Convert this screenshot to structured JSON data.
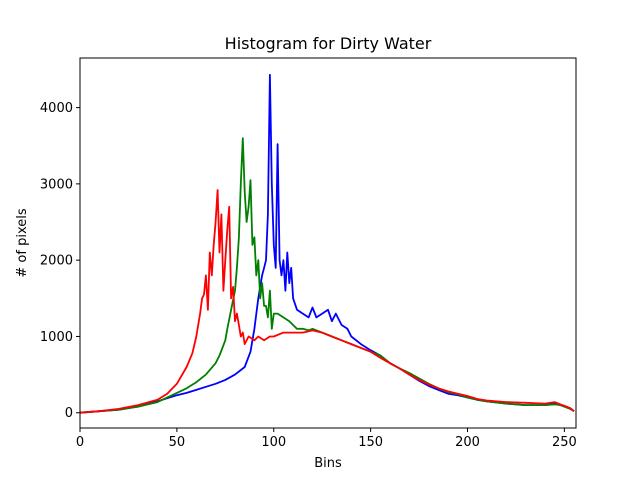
{
  "chart_data": {
    "type": "line",
    "title": "Histogram for Dirty Water",
    "xlabel": "Bins",
    "ylabel": "# of pixels",
    "xlim": [
      0,
      256
    ],
    "ylim": [
      -200,
      4650
    ],
    "xticks": [
      0,
      50,
      100,
      150,
      200,
      250
    ],
    "yticks": [
      0,
      1000,
      2000,
      3000,
      4000
    ],
    "grid": false,
    "legend": "none",
    "series": [
      {
        "color": "#0000ff",
        "x": [
          0,
          10,
          20,
          30,
          40,
          50,
          55,
          60,
          65,
          70,
          75,
          80,
          85,
          88,
          90,
          92,
          93,
          94,
          95,
          96,
          97,
          98,
          99,
          100,
          101,
          102,
          103,
          104,
          105,
          106,
          107,
          108,
          109,
          110,
          112,
          115,
          118,
          120,
          122,
          125,
          128,
          130,
          132,
          135,
          138,
          140,
          145,
          150,
          155,
          160,
          165,
          170,
          175,
          180,
          185,
          190,
          195,
          200,
          205,
          210,
          220,
          230,
          240,
          245,
          248,
          250,
          253,
          255
        ],
        "y": [
          0,
          20,
          40,
          80,
          150,
          230,
          260,
          300,
          340,
          380,
          430,
          500,
          600,
          800,
          1100,
          1500,
          1650,
          1800,
          1900,
          2000,
          2600,
          4430,
          3000,
          2200,
          1900,
          3520,
          2000,
          1800,
          2000,
          1600,
          2100,
          1700,
          1900,
          1500,
          1350,
          1300,
          1250,
          1380,
          1250,
          1300,
          1350,
          1200,
          1300,
          1150,
          1100,
          1000,
          900,
          820,
          750,
          650,
          580,
          500,
          420,
          350,
          300,
          250,
          230,
          200,
          170,
          150,
          120,
          100,
          100,
          120,
          100,
          90,
          60,
          20
        ]
      },
      {
        "color": "#008000",
        "x": [
          0,
          10,
          20,
          30,
          40,
          50,
          55,
          60,
          65,
          70,
          72,
          75,
          76,
          78,
          80,
          81,
          82,
          83,
          84,
          85,
          86,
          87,
          88,
          89,
          90,
          91,
          92,
          93,
          94,
          95,
          96,
          97,
          98,
          99,
          100,
          102,
          105,
          108,
          110,
          112,
          115,
          118,
          120,
          125,
          130,
          135,
          140,
          145,
          150,
          155,
          160,
          165,
          170,
          175,
          180,
          185,
          190,
          195,
          200,
          205,
          210,
          220,
          230,
          240,
          245,
          248,
          250,
          253,
          255
        ],
        "y": [
          0,
          20,
          40,
          80,
          140,
          260,
          320,
          400,
          500,
          650,
          750,
          950,
          1100,
          1350,
          1600,
          1900,
          2300,
          3000,
          3600,
          2900,
          2500,
          2700,
          3050,
          2200,
          2300,
          1800,
          2000,
          1500,
          1700,
          1400,
          1400,
          1250,
          1600,
          1100,
          1300,
          1300,
          1250,
          1200,
          1150,
          1100,
          1100,
          1080,
          1100,
          1050,
          1000,
          950,
          900,
          850,
          800,
          750,
          650,
          580,
          520,
          450,
          380,
          320,
          270,
          240,
          200,
          170,
          150,
          120,
          100,
          100,
          110,
          100,
          80,
          50,
          20
        ]
      },
      {
        "color": "#ff0000",
        "x": [
          0,
          10,
          20,
          30,
          40,
          45,
          50,
          55,
          58,
          60,
          62,
          63,
          64,
          65,
          66,
          67,
          68,
          69,
          70,
          71,
          72,
          73,
          74,
          75,
          76,
          77,
          78,
          79,
          80,
          81,
          82,
          83,
          84,
          85,
          87,
          90,
          92,
          95,
          98,
          100,
          105,
          110,
          115,
          120,
          125,
          130,
          135,
          140,
          145,
          150,
          155,
          160,
          165,
          170,
          175,
          180,
          185,
          190,
          195,
          200,
          205,
          210,
          220,
          230,
          240,
          245,
          248,
          250,
          253,
          255
        ],
        "y": [
          0,
          20,
          50,
          100,
          170,
          250,
          380,
          600,
          780,
          1000,
          1300,
          1500,
          1550,
          1800,
          1350,
          2100,
          1800,
          2200,
          2500,
          2920,
          2100,
          2600,
          1600,
          2000,
          2400,
          2700,
          1500,
          1650,
          1200,
          1300,
          1150,
          1000,
          1050,
          900,
          1000,
          950,
          1000,
          950,
          1000,
          1000,
          1050,
          1050,
          1050,
          1080,
          1050,
          1000,
          950,
          900,
          850,
          800,
          720,
          650,
          580,
          500,
          430,
          370,
          320,
          280,
          250,
          220,
          180,
          160,
          140,
          130,
          120,
          140,
          110,
          90,
          60,
          20
        ]
      }
    ]
  }
}
